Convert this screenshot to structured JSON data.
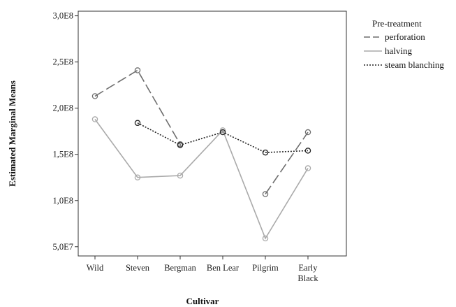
{
  "chart_data": {
    "type": "line",
    "xlabel": "Cultivar",
    "ylabel": "Estimated Marginal Means",
    "categories": [
      "Wild",
      "Steven",
      "Bergman",
      "Ben Lear",
      "Pilgrim",
      "Early Black"
    ],
    "y_ticks": [
      "5,0E7",
      "1,0E8",
      "1,5E8",
      "2,0E8",
      "2,5E8",
      "3,0E8"
    ],
    "ylim": [
      40000000,
      305000000
    ],
    "grid": false,
    "legend": {
      "title": "Pre-treatment",
      "placement": "right"
    },
    "series": [
      {
        "name": "perforation",
        "dash": "dashed",
        "color": "#6e6e6e",
        "values": [
          213000000,
          241000000,
          161000000,
          null,
          107000000,
          174000000
        ]
      },
      {
        "name": "halving",
        "dash": "solid",
        "color": "#aaaaaa",
        "values": [
          188000000,
          125000000,
          127000000,
          176000000,
          59000000,
          135000000
        ]
      },
      {
        "name": "steam blanching",
        "dash": "dotted",
        "color": "#222222",
        "values": [
          null,
          184000000,
          160000000,
          174000000,
          152000000,
          154000000
        ]
      }
    ]
  }
}
